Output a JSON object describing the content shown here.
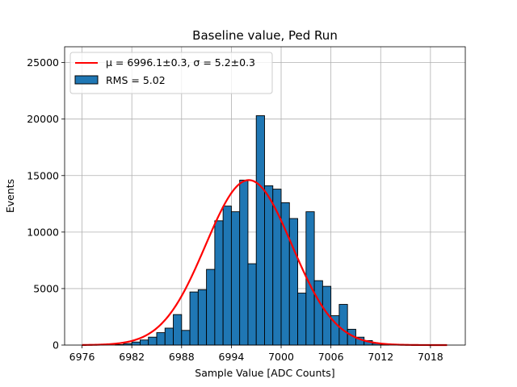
{
  "chart_data": {
    "type": "bar",
    "title": "Baseline value, Ped Run",
    "xlabel": "Sample Value [ADC Counts]",
    "ylabel": "Events",
    "xlim": [
      6973.9,
      7022.2
    ],
    "ylim": [
      0,
      26400
    ],
    "x_ticks": [
      6976,
      6982,
      6988,
      6994,
      7000,
      7006,
      7012,
      7018
    ],
    "y_ticks": [
      0,
      5000,
      10000,
      15000,
      20000,
      25000
    ],
    "grid": true,
    "legend_position": "top-left",
    "histogram": {
      "name": "RMS = 5.02",
      "color": "#1f77b4",
      "edge_color": "#000000",
      "bin_width": 1,
      "bins": [
        {
          "x": 6980.5,
          "value": 40
        },
        {
          "x": 6981.5,
          "value": 130
        },
        {
          "x": 6982.5,
          "value": 270
        },
        {
          "x": 6983.5,
          "value": 450
        },
        {
          "x": 6984.5,
          "value": 700
        },
        {
          "x": 6985.5,
          "value": 1100
        },
        {
          "x": 6986.5,
          "value": 1500
        },
        {
          "x": 6987.5,
          "value": 2700
        },
        {
          "x": 6988.5,
          "value": 1300
        },
        {
          "x": 6989.5,
          "value": 4700
        },
        {
          "x": 6990.5,
          "value": 4900
        },
        {
          "x": 6991.5,
          "value": 6700
        },
        {
          "x": 6992.5,
          "value": 11000
        },
        {
          "x": 6993.5,
          "value": 12300
        },
        {
          "x": 6994.5,
          "value": 11800
        },
        {
          "x": 6995.5,
          "value": 14600
        },
        {
          "x": 6996.5,
          "value": 7200
        },
        {
          "x": 6997.5,
          "value": 20300
        },
        {
          "x": 6998.5,
          "value": 14100
        },
        {
          "x": 6999.5,
          "value": 13800
        },
        {
          "x": 7000.5,
          "value": 12600
        },
        {
          "x": 7001.5,
          "value": 11200
        },
        {
          "x": 7002.5,
          "value": 4600
        },
        {
          "x": 7003.5,
          "value": 11800
        },
        {
          "x": 7004.5,
          "value": 5700
        },
        {
          "x": 7005.5,
          "value": 5200
        },
        {
          "x": 7006.5,
          "value": 2600
        },
        {
          "x": 7007.5,
          "value": 3600
        },
        {
          "x": 7008.5,
          "value": 1400
        },
        {
          "x": 7009.5,
          "value": 700
        },
        {
          "x": 7010.5,
          "value": 400
        },
        {
          "x": 7011.5,
          "value": 150
        },
        {
          "x": 7012.5,
          "value": 40
        }
      ]
    },
    "fit": {
      "name_prefix": "μ = 6996.1±0.3, ",
      "name_suffix": "σ = 5.2±0.3",
      "color": "#ff0000",
      "mu": 6996.1,
      "sigma": 5.2,
      "amplitude": 14600,
      "x_range": [
        6976,
        7020
      ]
    }
  }
}
